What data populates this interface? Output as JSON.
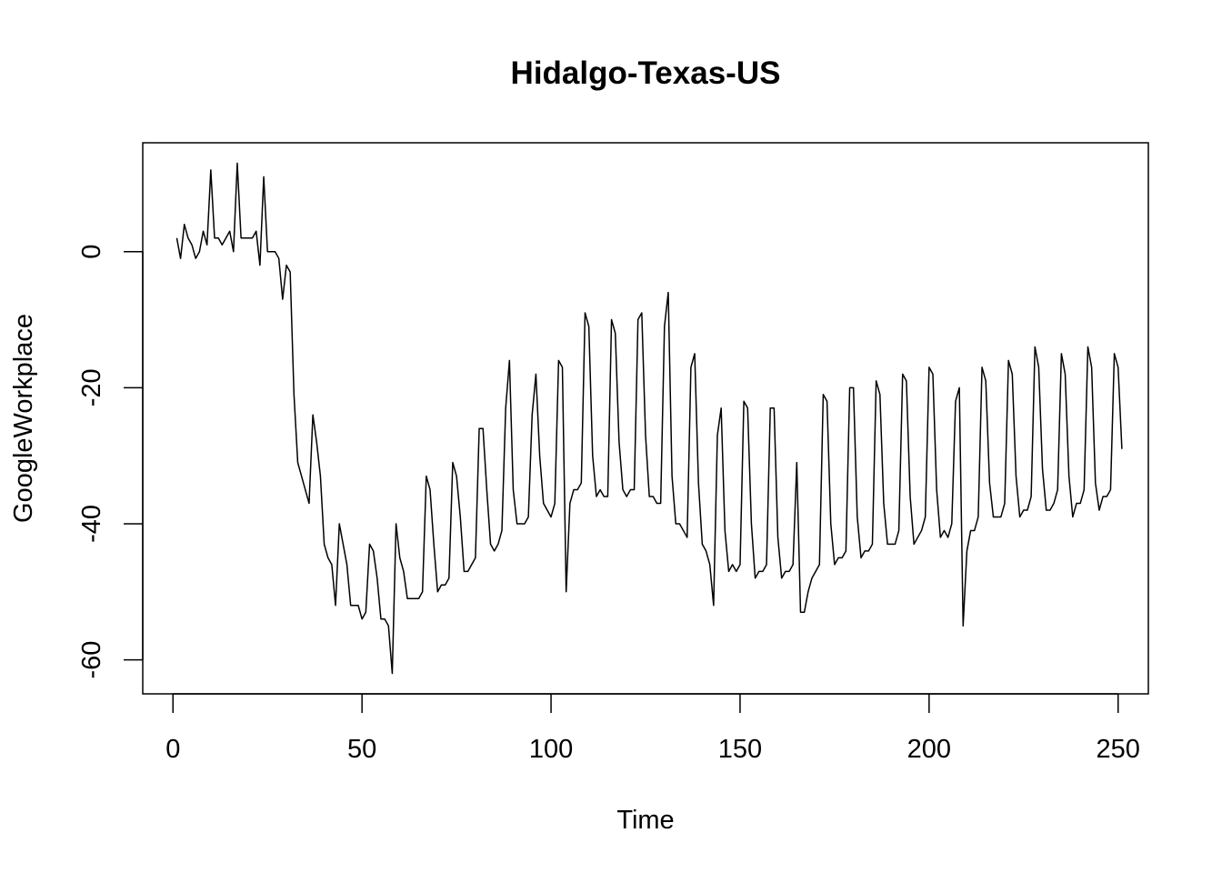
{
  "chart_data": {
    "type": "line",
    "title": "Hidalgo-Texas-US",
    "xlabel": "Time",
    "ylabel": "GoogleWorkplace",
    "xlim": [
      -8,
      258
    ],
    "ylim": [
      -65,
      16
    ],
    "x_ticks": [
      0,
      50,
      100,
      150,
      200,
      250
    ],
    "y_ticks": [
      0,
      -20,
      -40,
      -60
    ],
    "x_tick_labels": [
      "0",
      "50",
      "100",
      "150",
      "200",
      "250"
    ],
    "y_tick_labels": [
      "0",
      "-20",
      "-40",
      "-60"
    ],
    "grid": false,
    "line_color": "#000000",
    "series": [
      {
        "x_start": 1,
        "values": [
          2,
          -1,
          4,
          2,
          1,
          -1,
          0,
          3,
          1,
          12,
          2,
          2,
          1,
          2,
          3,
          0,
          13,
          2,
          2,
          2,
          2,
          3,
          -2,
          11,
          0,
          0,
          0,
          -1,
          -7,
          -2,
          -3,
          -21,
          -31,
          -33,
          -35,
          -37,
          -24,
          -28,
          -33,
          -43,
          -45,
          -46,
          -52,
          -40,
          -43,
          -46,
          -52,
          -52,
          -52,
          -54,
          -53,
          -43,
          -44,
          -48,
          -54,
          -54,
          -55,
          -62,
          -40,
          -45,
          -47,
          -51,
          -51,
          -51,
          -51,
          -50,
          -33,
          -35,
          -43,
          -50,
          -49,
          -49,
          -48,
          -31,
          -33,
          -39,
          -47,
          -47,
          -46,
          -45,
          -26,
          -26,
          -35,
          -43,
          -44,
          -43,
          -41,
          -23,
          -16,
          -35,
          -40,
          -40,
          -40,
          -39,
          -24,
          -18,
          -30,
          -37,
          -38,
          -39,
          -37,
          -16,
          -17,
          -50,
          -37,
          -35,
          -35,
          -34,
          -9,
          -11,
          -30,
          -36,
          -35,
          -36,
          -36,
          -10,
          -12,
          -28,
          -35,
          -36,
          -35,
          -35,
          -10,
          -9,
          -27,
          -36,
          -36,
          -37,
          -37,
          -11,
          -6,
          -33,
          -40,
          -40,
          -41,
          -42,
          -17,
          -15,
          -34,
          -43,
          -44,
          -46,
          -52,
          -27,
          -23,
          -41,
          -47,
          -46,
          -47,
          -46,
          -22,
          -23,
          -40,
          -48,
          -47,
          -47,
          -46,
          -23,
          -23,
          -42,
          -48,
          -47,
          -47,
          -46,
          -31,
          -53,
          -53,
          -50,
          -48,
          -47,
          -46,
          -21,
          -22,
          -40,
          -46,
          -45,
          -45,
          -44,
          -20,
          -20,
          -39,
          -45,
          -44,
          -44,
          -43,
          -19,
          -21,
          -37,
          -43,
          -43,
          -43,
          -41,
          -18,
          -19,
          -36,
          -43,
          -42,
          -41,
          -39,
          -17,
          -18,
          -35,
          -42,
          -41,
          -42,
          -40,
          -22,
          -20,
          -55,
          -44,
          -41,
          -41,
          -39,
          -17,
          -19,
          -34,
          -39,
          -39,
          -39,
          -37,
          -16,
          -18,
          -33,
          -39,
          -38,
          -38,
          -36,
          -14,
          -17,
          -32,
          -38,
          -38,
          -37,
          -35,
          -15,
          -18,
          -33,
          -39,
          -37,
          -37,
          -35,
          -14,
          -17,
          -34,
          -38,
          -36,
          -36,
          -35,
          -15,
          -17,
          -29
        ]
      }
    ]
  }
}
